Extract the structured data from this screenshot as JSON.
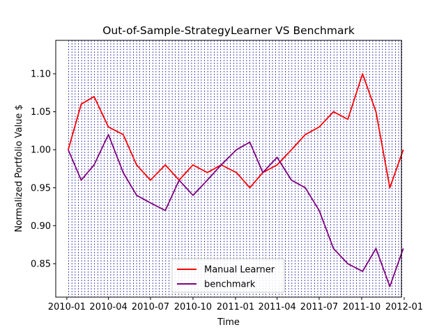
{
  "chart_data": {
    "type": "line",
    "title": "Out-of-Sample-StrategyLearner VS Benchmark",
    "xlabel": "Time",
    "ylabel": "Normalized Portfolio Value $",
    "x_range": [
      "2009-12-08",
      "2011-12-26"
    ],
    "ylim": [
      0.806,
      1.144
    ],
    "x_ticks": [
      "2010-01",
      "2010-04",
      "2010-07",
      "2010-10",
      "2011-01",
      "2011-04",
      "2011-07",
      "2011-10",
      "2012-01"
    ],
    "y_ticks": [
      "0.85",
      "0.90",
      "0.95",
      "1.00",
      "1.05",
      "1.10"
    ],
    "legend": {
      "location": "bottom-center",
      "entries": [
        "Manual Learner",
        "benchmark"
      ]
    },
    "grid": false,
    "trade_marker_color": "#00008b",
    "x": [
      "2010-01-04",
      "2010-02-01",
      "2010-03-01",
      "2010-04-01",
      "2010-05-03",
      "2010-06-01",
      "2010-07-01",
      "2010-08-02",
      "2010-09-01",
      "2010-10-01",
      "2010-11-01",
      "2010-12-01",
      "2011-01-03",
      "2011-02-01",
      "2011-03-01",
      "2011-04-01",
      "2011-05-02",
      "2011-06-01",
      "2011-07-01",
      "2011-08-01",
      "2011-09-01",
      "2011-10-03",
      "2011-11-01",
      "2011-12-01",
      "2011-12-30"
    ],
    "series": [
      {
        "name": "Manual Learner",
        "color": "#ff0000",
        "values": [
          1.0,
          1.06,
          1.07,
          1.03,
          1.02,
          0.98,
          0.96,
          0.98,
          0.96,
          0.98,
          0.97,
          0.98,
          0.97,
          0.95,
          0.97,
          0.98,
          1.0,
          1.02,
          1.03,
          1.05,
          1.04,
          1.1,
          1.05,
          0.95,
          1.0
        ]
      },
      {
        "name": "benchmark",
        "color": "#800080",
        "values": [
          1.0,
          0.96,
          0.98,
          1.02,
          0.97,
          0.94,
          0.93,
          0.92,
          0.96,
          0.94,
          0.96,
          0.98,
          1.0,
          1.01,
          0.97,
          0.99,
          0.96,
          0.95,
          0.92,
          0.87,
          0.85,
          0.84,
          0.87,
          0.82,
          0.87
        ]
      }
    ],
    "trade_dates": [
      "2010-01-05",
      "2010-01-12",
      "2010-01-19",
      "2010-01-26",
      "2010-02-02",
      "2010-02-09",
      "2010-02-16",
      "2010-02-23",
      "2010-03-02",
      "2010-03-09",
      "2010-03-16",
      "2010-03-23",
      "2010-03-30",
      "2010-04-06",
      "2010-04-13",
      "2010-04-20",
      "2010-04-27",
      "2010-05-04",
      "2010-05-11",
      "2010-05-18",
      "2010-05-25",
      "2010-06-01",
      "2010-06-08",
      "2010-06-15",
      "2010-06-22",
      "2010-06-29",
      "2010-07-06",
      "2010-07-13",
      "2010-07-20",
      "2010-07-27",
      "2010-08-03",
      "2010-08-10",
      "2010-08-17",
      "2010-08-24",
      "2010-08-31",
      "2010-09-07",
      "2010-09-14",
      "2010-09-21",
      "2010-09-28",
      "2010-10-05",
      "2010-10-12",
      "2010-10-19",
      "2010-10-26",
      "2010-11-02",
      "2010-11-09",
      "2010-11-16",
      "2010-11-23",
      "2010-11-30",
      "2010-12-07",
      "2010-12-14",
      "2010-12-21",
      "2010-12-28",
      "2011-01-04",
      "2011-01-11",
      "2011-01-18",
      "2011-01-25",
      "2011-02-01",
      "2011-02-08",
      "2011-02-15",
      "2011-02-22",
      "2011-03-01",
      "2011-03-08",
      "2011-03-15",
      "2011-03-22",
      "2011-03-29",
      "2011-04-05",
      "2011-04-12",
      "2011-04-19",
      "2011-04-26",
      "2011-05-03",
      "2011-05-10",
      "2011-05-17",
      "2011-05-24",
      "2011-05-31",
      "2011-06-07",
      "2011-06-14",
      "2011-06-21",
      "2011-06-28",
      "2011-07-05",
      "2011-07-12",
      "2011-07-19",
      "2011-07-26",
      "2011-08-02",
      "2011-08-09",
      "2011-08-16",
      "2011-08-23",
      "2011-08-30",
      "2011-09-06",
      "2011-09-13",
      "2011-09-20",
      "2011-09-27",
      "2011-10-04",
      "2011-10-11",
      "2011-10-18",
      "2011-10-25",
      "2011-11-01",
      "2011-11-08",
      "2011-11-15",
      "2011-11-22",
      "2011-11-29",
      "2011-12-06",
      "2011-12-13",
      "2011-12-20",
      "2011-12-27"
    ]
  }
}
